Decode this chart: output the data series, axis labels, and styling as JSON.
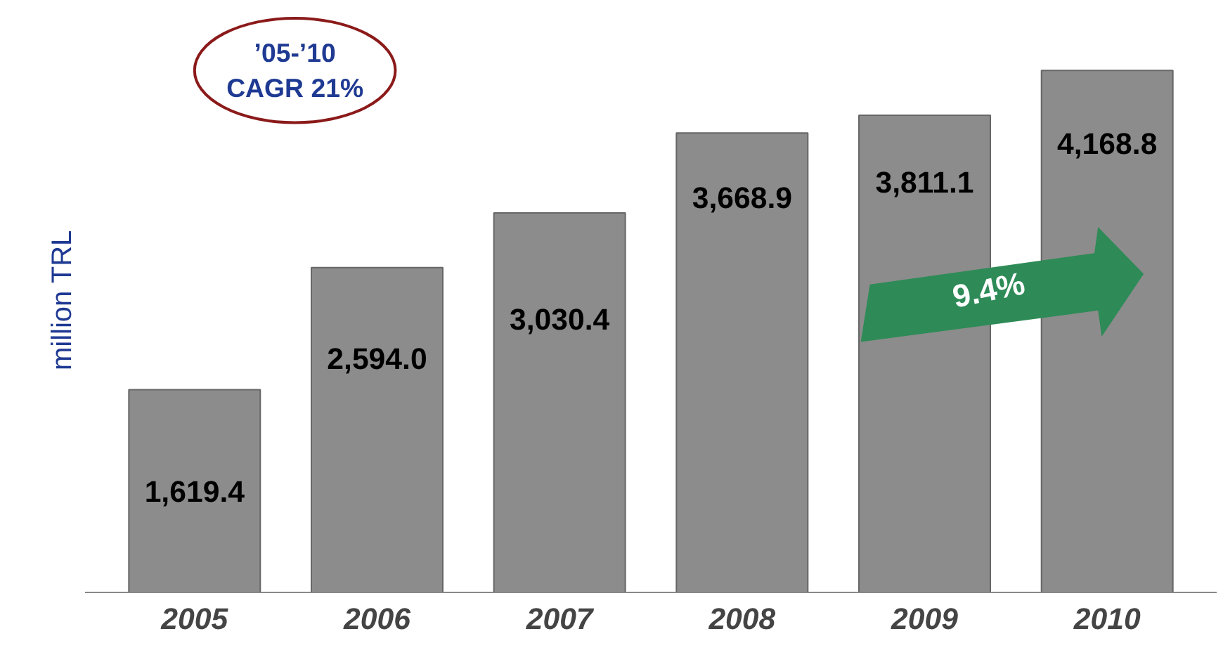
{
  "chart_data": {
    "type": "bar",
    "ylabel": "million TRL",
    "categories": [
      "2005",
      "2006",
      "2007",
      "2008",
      "2009",
      "2010"
    ],
    "values": [
      1619.4,
      2594.0,
      3030.4,
      3668.9,
      3811.1,
      4168.8
    ],
    "value_labels": [
      "1,619.4",
      "2,594.0",
      "3,030.4",
      "3,668.9",
      "3,811.1",
      "4,168.8"
    ],
    "color": "#8c8c8c",
    "annotations": [
      "’05-’10\nCAGR 21%",
      "9.4%"
    ],
    "grid": false
  }
}
